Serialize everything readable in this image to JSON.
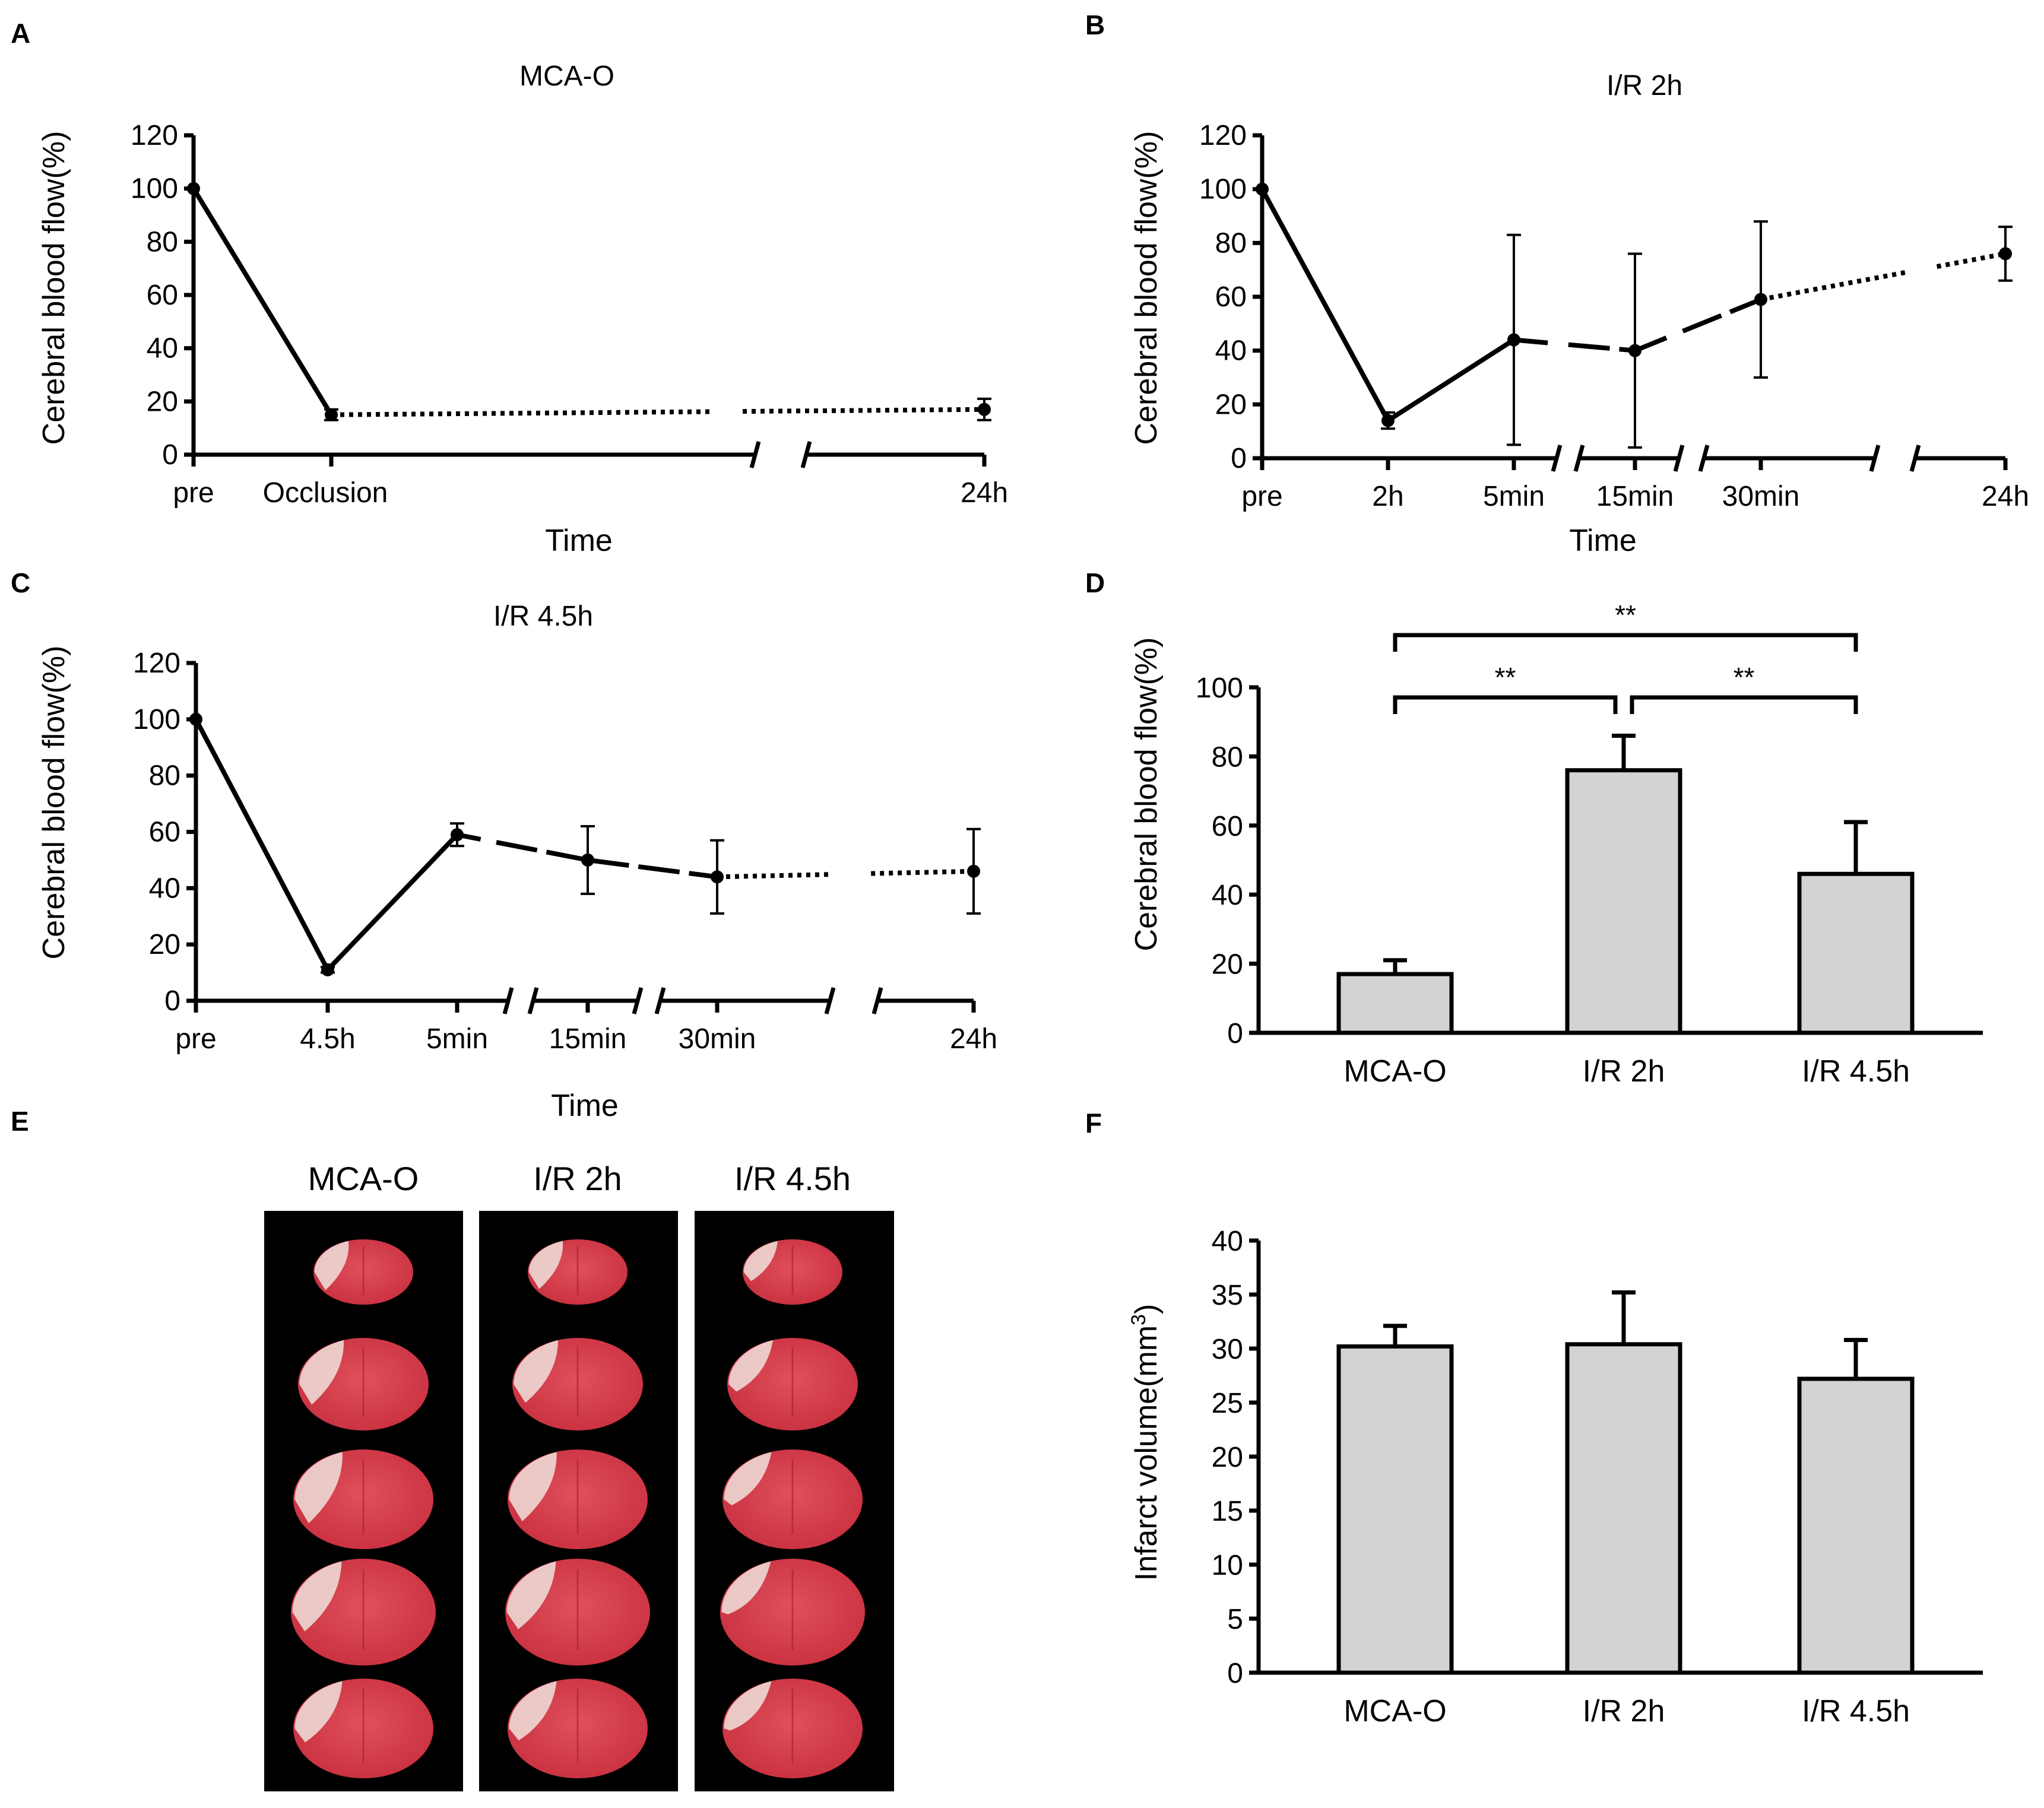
{
  "figure": {
    "panels": {
      "A": "A",
      "B": "B",
      "C": "C",
      "D": "D",
      "E": "E",
      "F": "F"
    }
  },
  "chart_data": [
    {
      "id": "A",
      "type": "line",
      "title": "MCA-O",
      "xlabel": "Time",
      "ylabel": "Cerebral blood flow(%)",
      "ylim": [
        0,
        120
      ],
      "yticks": [
        0,
        20,
        40,
        60,
        80,
        100,
        120
      ],
      "categories": [
        "pre",
        "Occlusion",
        "24h"
      ],
      "values": [
        100,
        15,
        17
      ],
      "errors": [
        0,
        2,
        4
      ]
    },
    {
      "id": "B",
      "type": "line",
      "title": "I/R 2h",
      "xlabel": "Time",
      "ylabel": "Cerebral blood flow(%)",
      "ylim": [
        0,
        120
      ],
      "yticks": [
        0,
        20,
        40,
        60,
        80,
        100,
        120
      ],
      "categories": [
        "pre",
        "2h",
        "5min",
        "15min",
        "30min",
        "24h"
      ],
      "values": [
        100,
        14,
        44,
        40,
        59,
        76
      ],
      "errors": [
        0,
        3,
        39,
        36,
        29,
        10
      ]
    },
    {
      "id": "C",
      "type": "line",
      "title": "I/R 4.5h",
      "xlabel": "Time",
      "ylabel": "Cerebral blood flow(%)",
      "ylim": [
        0,
        120
      ],
      "yticks": [
        0,
        20,
        40,
        60,
        80,
        100,
        120
      ],
      "categories": [
        "pre",
        "4.5h",
        "5min",
        "15min",
        "30min",
        "24h"
      ],
      "values": [
        100,
        11,
        59,
        50,
        44,
        46
      ],
      "errors": [
        0,
        1,
        4,
        12,
        13,
        15
      ]
    },
    {
      "id": "D",
      "type": "bar",
      "xlabel": "",
      "ylabel": "Cerebral blood flow(%)",
      "ylim": [
        0,
        100
      ],
      "yticks": [
        0,
        20,
        40,
        60,
        80,
        100
      ],
      "categories": [
        "MCA-O",
        "I/R 2h",
        "I/R 4.5h"
      ],
      "values": [
        17,
        76,
        46
      ],
      "errors": [
        4,
        10,
        15
      ],
      "significance": [
        {
          "from": 0,
          "to": 1,
          "label": "**"
        },
        {
          "from": 1,
          "to": 2,
          "label": "**"
        },
        {
          "from": 0,
          "to": 2,
          "label": "**"
        }
      ]
    },
    {
      "id": "F",
      "type": "bar",
      "xlabel": "",
      "ylabel": "Infarct volume(mm",
      "ylabel_sup": "3",
      "ylabel_end": ")",
      "ylim": [
        0,
        40
      ],
      "yticks": [
        0,
        5,
        10,
        15,
        20,
        25,
        30,
        35,
        40
      ],
      "categories": [
        "MCA-O",
        "I/R 2h",
        "I/R 4.5h"
      ],
      "values": [
        30.2,
        30.4,
        27.2
      ],
      "errors": [
        1.9,
        4.8,
        3.6
      ]
    }
  ],
  "ttc_panel": {
    "columns": [
      "MCA-O",
      "I/R 2h",
      "I/R 4.5h"
    ],
    "slices_per_column": 5,
    "colors": {
      "background": "#000000",
      "tissue": "#d8414e",
      "infarct": "#efe2dc"
    }
  }
}
